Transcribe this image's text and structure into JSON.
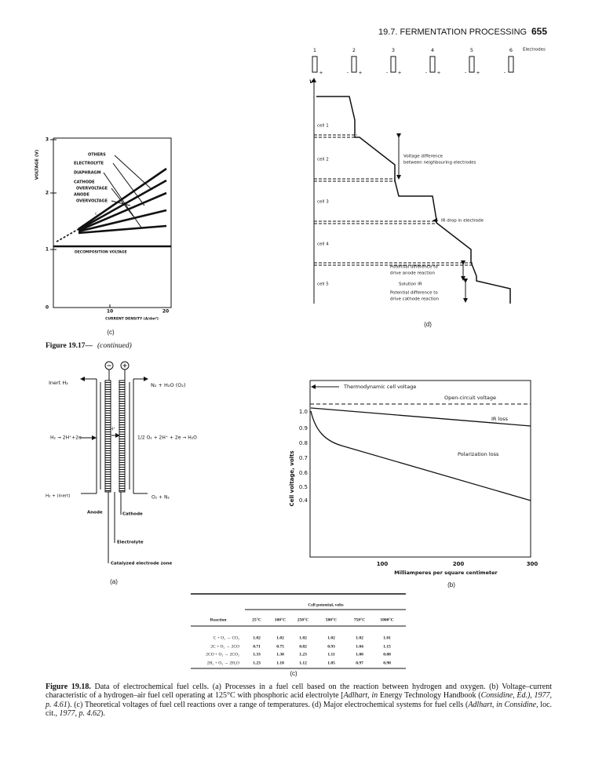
{
  "header": {
    "section": "19.7. FERMENTATION PROCESSING",
    "page": "655"
  },
  "figure_top_c": {
    "y_label": "VOLTAGE (V)",
    "y_ticks": [
      "3",
      "2",
      "1",
      "0"
    ],
    "x_ticks": [
      "10",
      "20"
    ],
    "x_label": "CURRENT DENSITY (A/dm²)",
    "labels": [
      "OTHERS",
      "ELECTROLYTE",
      "DIAPHRAGM",
      "CATHODE",
      "OVERVOLTAGE",
      "ANODE",
      "OVERVOLTAGE"
    ],
    "marker": "c",
    "baseline": "DECOMPOSITION VOLTAGE",
    "panel": "(c)"
  },
  "continued": {
    "label": "Figure 19.17—",
    "note": "(continued)"
  },
  "figure_d": {
    "electrodes": [
      {
        "number": "1",
        "plus": "+"
      },
      {
        "number": "2",
        "minus": "-",
        "plus": "+"
      },
      {
        "number": "3",
        "minus": "-",
        "plus": "+"
      },
      {
        "number": "4",
        "minus": "-",
        "plus": "+"
      },
      {
        "number": "5",
        "minus": "-",
        "plus": "+"
      },
      {
        "number": "6",
        "minus": "-"
      }
    ],
    "electrodes_label": "Electrodes",
    "axis": "V",
    "cells": [
      "cell 1",
      "cell 2",
      "cell 3",
      "cell 4",
      "cell 5"
    ],
    "voltage_difference": [
      "Voltage difference",
      "between neighbouring electrodes"
    ],
    "ir_drop": "IR drop in electrode",
    "anode": [
      "Potential difference to",
      "drive anode reaction"
    ],
    "solution_ir": "Solution IR",
    "cathode": [
      "Potential difference to",
      "drive cathode reaction"
    ],
    "panel": "(d)"
  },
  "figure_a": {
    "signs": [
      "−",
      "+"
    ],
    "inert_h2": "Inert H₂",
    "exhaust": "N₂ + H₂O (O₂)",
    "anode_reaction": "H₂ → 2H⁺+2e",
    "cathode_reaction": "1/2 O₂ + 2H⁺ + 2e → H₂O",
    "proton": "H⁺",
    "h2_inlet": "H₂ + (inert)",
    "o2_inlet": "O₂ + N₂",
    "anode": "Anode",
    "cathode": "Cathode",
    "electrolyte": "Electrolyte",
    "catalyzed": "Catalyzed electrode zone",
    "panel": "(a)"
  },
  "figure_b": {
    "thermodynamic": "Thermodynamic cell voltage",
    "open_circuit": "Open-circuit voltage",
    "ir_loss": "IR loss",
    "polarization": "Polarization loss",
    "y_label": "Cell voltage, volts",
    "y_ticks": [
      "1.0",
      "0.9",
      "0.8",
      "0.7",
      "0.6",
      "0.5",
      "0.4"
    ],
    "x_ticks": [
      "100",
      "200",
      "300"
    ],
    "x_label": "Milliamperes per square centimeter",
    "panel": "(b)"
  },
  "table": {
    "title": "Cell potential, volts",
    "header": [
      "Reaction",
      "25°C",
      "100°C",
      "250°C",
      "500°C",
      "750°C",
      "1000°C"
    ],
    "rows": [
      [
        "C + O₂ → CO₂",
        "1.02",
        "1.02",
        "1.02",
        "1.02",
        "1.02",
        "1.01"
      ],
      [
        "2C + O₂ → 2CO",
        "0.71",
        "0.75",
        "0.82",
        "0.93",
        "1.04",
        "1.15"
      ],
      [
        "2CO + O₂ → 2CO₂",
        "1.33",
        "1.30",
        "1.23",
        "1.11",
        "1.00",
        "0.88"
      ],
      [
        "2H₂ + O₂ → 2H₂O",
        "1.23",
        "1.18",
        "1.12",
        "1.05",
        "0.97",
        "0.90"
      ]
    ],
    "panel": "(c)"
  },
  "caption": {
    "label": "Figure 19.18.",
    "parts": [
      " Data of electrochemical fuel cells. (a) Processes in a fuel cell based on the reaction between hydrogen and oxygen. (b) Voltage–current characteristic of a hydrogen–air fuel cell operating at 125°C with phosphoric acid electrolyte [",
      "Adlhart, in",
      " Energy Technology Handbook (",
      "Considine, Ed.), 1977, p. 4.61",
      "). (c) Theoretical voltages of fuel cell reactions over a range of temperatures. (d) Major electrochemical systems for fuel cells (",
      "Adlhart, in Considine,",
      " loc. cit., ",
      "1977, p. 4.62",
      ")."
    ]
  }
}
